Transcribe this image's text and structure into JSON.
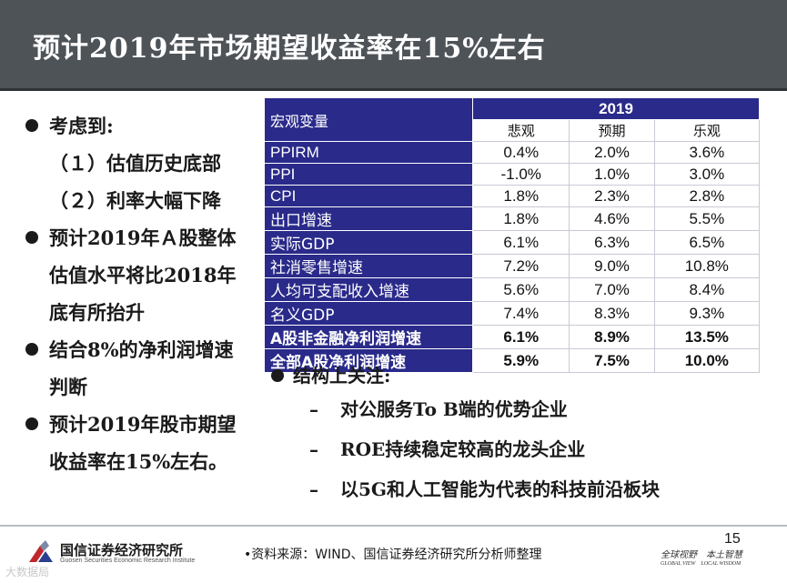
{
  "title": "预计2019年市场期望收益率在15%左右",
  "left_points": [
    {
      "bullet": true,
      "text": "考虑到:"
    },
    {
      "bullet": false,
      "text": "（１）估值历史底部"
    },
    {
      "bullet": false,
      "text": "（２）利率大幅下降"
    },
    {
      "bullet": true,
      "text": "预计2019年Ａ股整体"
    },
    {
      "bullet": false,
      "text": "估值水平将比2018年"
    },
    {
      "bullet": false,
      "text": "底有所抬升"
    },
    {
      "bullet": true,
      "text": "结合8%的净利润增速"
    },
    {
      "bullet": false,
      "text": "判断"
    },
    {
      "bullet": true,
      "text": "预计2019年股市期望"
    },
    {
      "bullet": false,
      "text": "收益率在15%左右。"
    }
  ],
  "table": {
    "corner_label": "宏观变量",
    "year": "2019",
    "columns": [
      "悲观",
      "预期",
      "乐观"
    ],
    "rows": [
      {
        "label": "PPIRM",
        "values": [
          "0.4%",
          "2.0%",
          "3.6%"
        ],
        "bold": false
      },
      {
        "label": "PPI",
        "values": [
          "-1.0%",
          "1.0%",
          "3.0%"
        ],
        "bold": false
      },
      {
        "label": "CPI",
        "values": [
          "1.8%",
          "2.3%",
          "2.8%"
        ],
        "bold": false
      },
      {
        "label": "出口增速",
        "values": [
          "1.8%",
          "4.6%",
          "5.5%"
        ],
        "bold": false
      },
      {
        "label": "实际GDP",
        "values": [
          "6.1%",
          "6.3%",
          "6.5%"
        ],
        "bold": false
      },
      {
        "label": "社消零售增速",
        "values": [
          "7.2%",
          "9.0%",
          "10.8%"
        ],
        "bold": false
      },
      {
        "label": "人均可支配收入增速",
        "values": [
          "5.6%",
          "7.0%",
          "8.4%"
        ],
        "bold": false
      },
      {
        "label": "名义GDP",
        "values": [
          "7.4%",
          "8.3%",
          "9.3%"
        ],
        "bold": false
      },
      {
        "label": "A股非金融净利润增速",
        "values": [
          "6.1%",
          "8.9%",
          "13.5%"
        ],
        "bold": true
      },
      {
        "label": "全部A股净利润增速",
        "values": [
          "5.9%",
          "7.5%",
          "10.0%"
        ],
        "bold": true
      }
    ]
  },
  "focus": {
    "heading": "结构上关注:",
    "items": [
      "对公服务To B端的优势企业",
      "ROE持续稳定较高的龙头企业",
      "以5G和人工智能为代表的科技前沿板块"
    ],
    "dash": "–"
  },
  "footer": {
    "org_name": "国信证券经济研究所",
    "org_sub": "Guosen Securities Economic Research Institute",
    "source": "•资料来源：WIND、国信证券经济研究所分析师整理",
    "page_number": "15",
    "slogan_cn": "全球视野　本土智慧",
    "slogan_en": "GLOBAL VIEW　LOCAL WISDOM",
    "watermark": "大数据局",
    "brand_color": "#c0272d",
    "header_color": "#4e5358",
    "table_header_color": "#2a2a8a"
  }
}
